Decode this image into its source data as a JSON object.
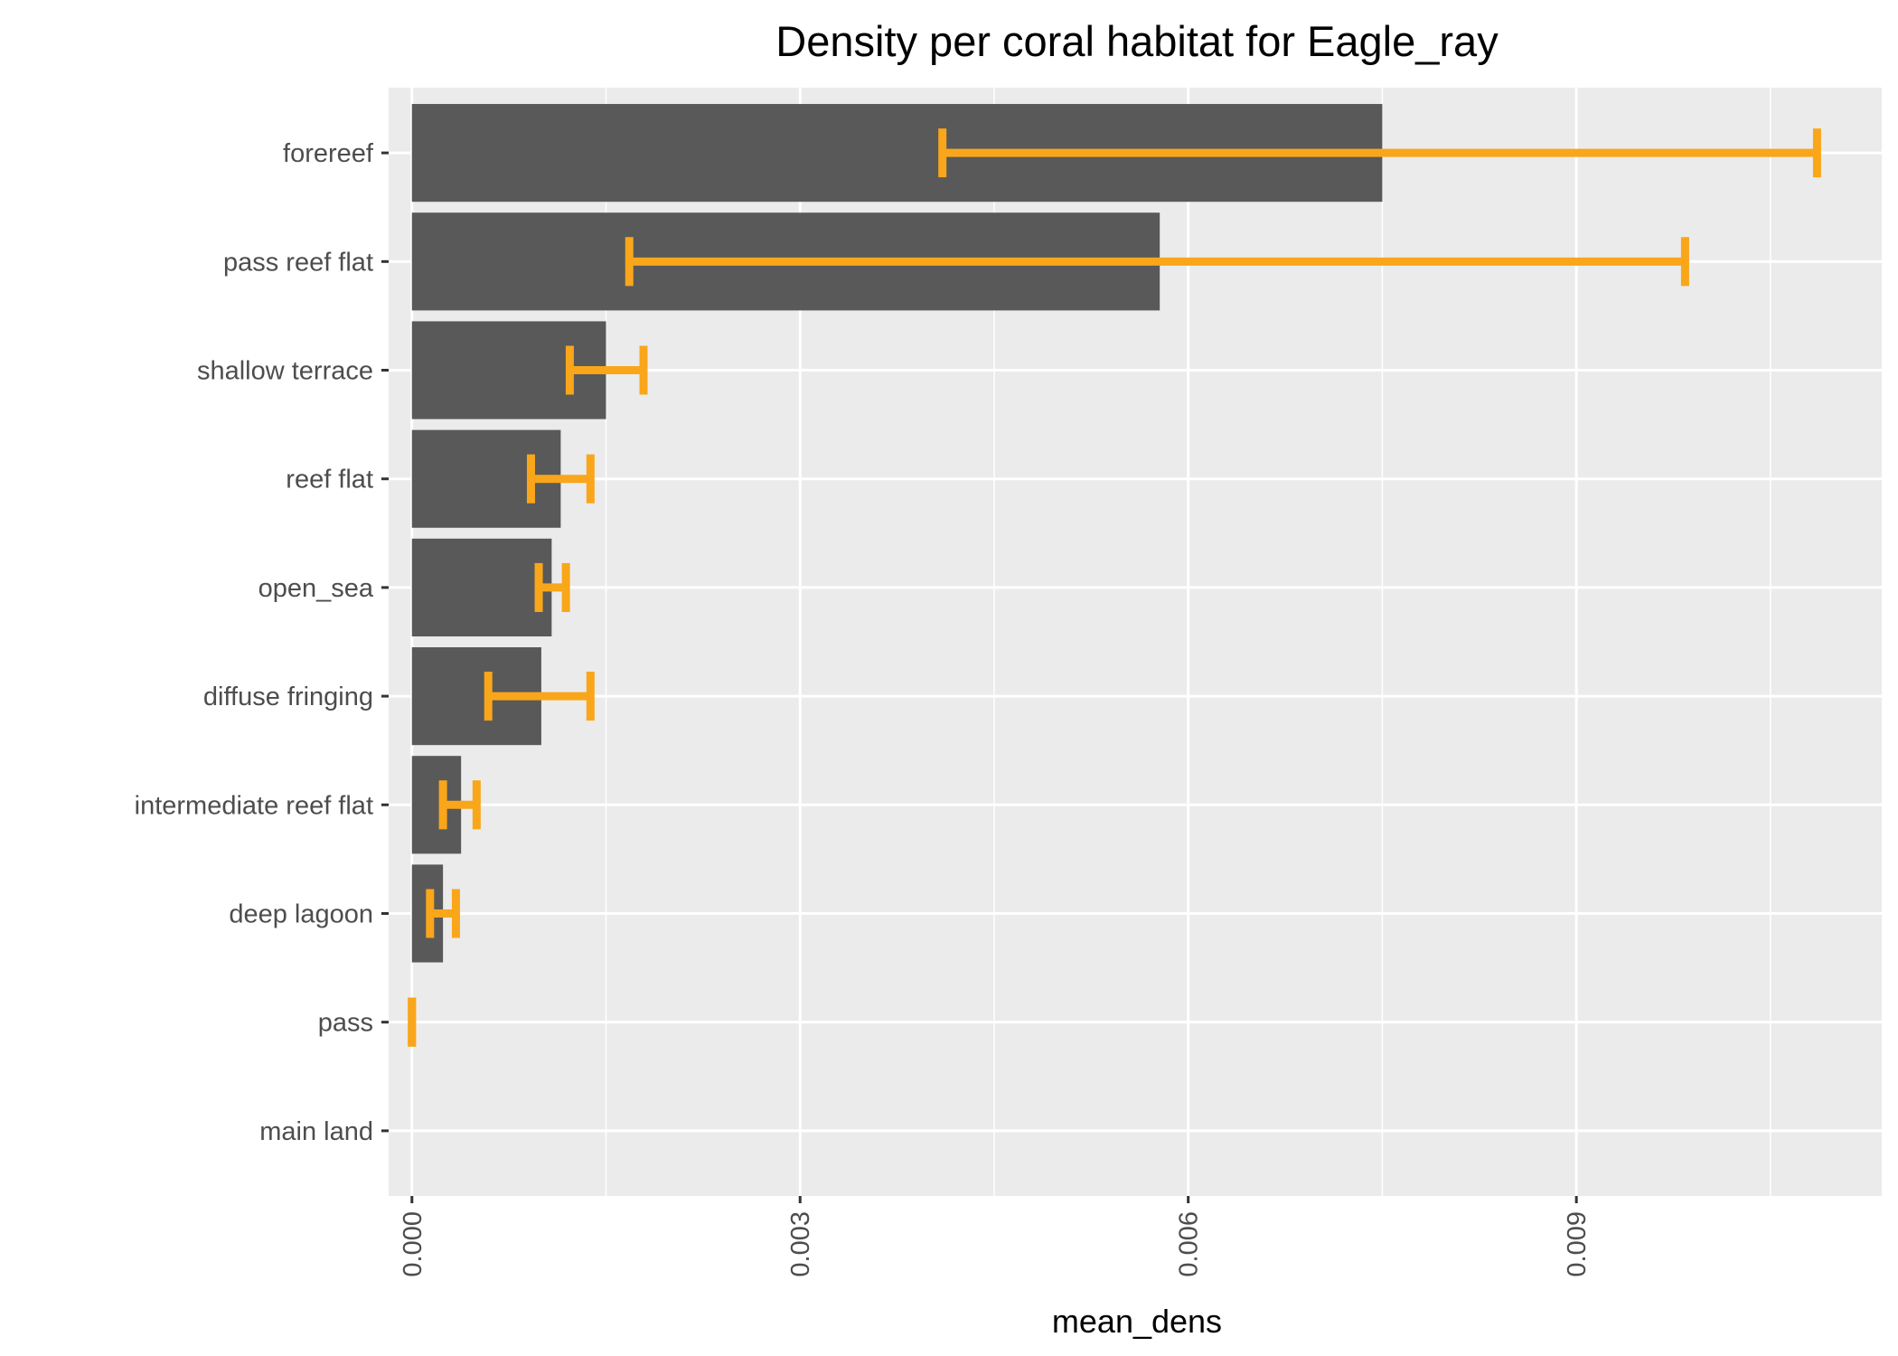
{
  "chart_data": {
    "type": "bar",
    "orientation": "horizontal",
    "title": "Density per coral habitat for Eagle_ray",
    "xlabel": "mean_dens",
    "ylabel": "",
    "xlim": [
      -0.00018,
      0.01136
    ],
    "xticks": [
      0.0,
      0.003,
      0.006,
      0.009
    ],
    "xtick_labels": [
      "0.000",
      "0.003",
      "0.006",
      "0.009"
    ],
    "grid": true,
    "colors": {
      "panel": "#ebebeb",
      "bar": "#595959",
      "errorbar": "#f9a61a",
      "grid": "#ffffff",
      "tick_text": "#4d4d4d"
    },
    "categories": [
      "forereef",
      "pass reef flat",
      "shallow terrace",
      "reef flat",
      "open_sea",
      "diffuse fringing",
      "intermediate reef flat",
      "deep lagoon",
      "pass",
      "main land"
    ],
    "values": [
      0.0075,
      0.00578,
      0.0015,
      0.00115,
      0.00108,
      0.001,
      0.00038,
      0.00024,
      0.0,
      0.0
    ],
    "error_low": [
      0.0041,
      0.00168,
      0.00122,
      0.00092,
      0.00098,
      0.00059,
      0.00024,
      0.00014,
      0.0,
      null
    ],
    "error_high": [
      0.01086,
      0.00984,
      0.00179,
      0.00138,
      0.00119,
      0.00138,
      0.0005,
      0.00034,
      0.0,
      null
    ]
  }
}
